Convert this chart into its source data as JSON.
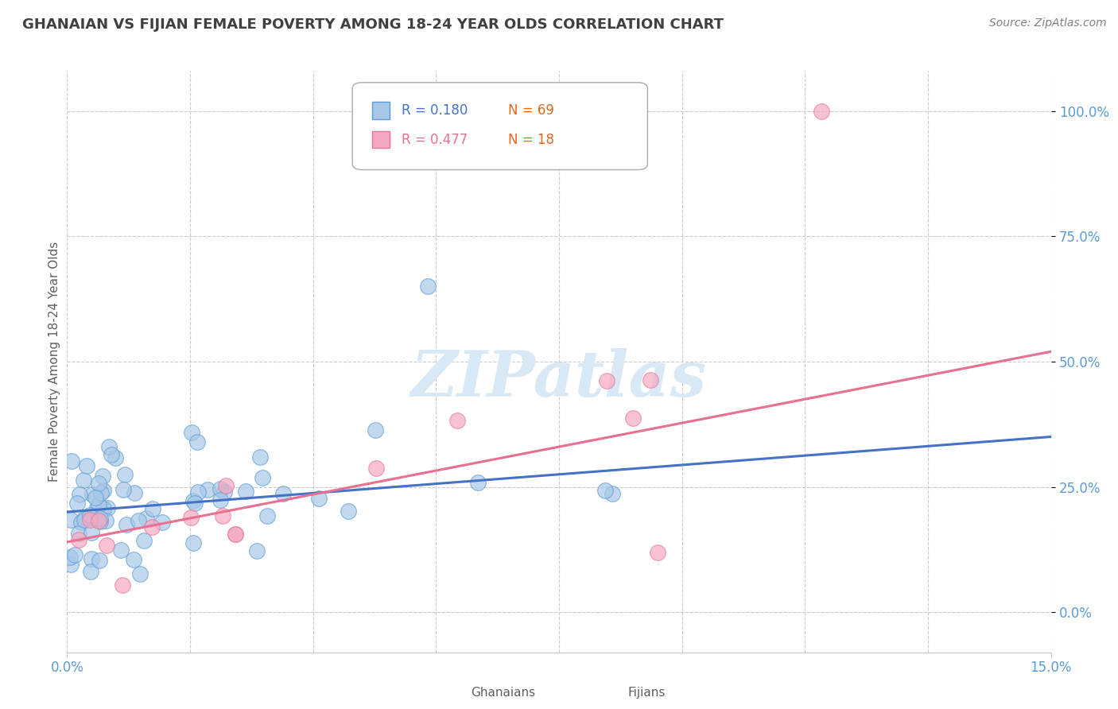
{
  "title": "GHANAIAN VS FIJIAN FEMALE POVERTY AMONG 18-24 YEAR OLDS CORRELATION CHART",
  "source": "Source: ZipAtlas.com",
  "ylabel": "Female Poverty Among 18-24 Year Olds",
  "xlim": [
    0.0,
    15.0
  ],
  "ylim": [
    -8.0,
    108.0
  ],
  "yticks": [
    0,
    25,
    50,
    75,
    100
  ],
  "ytick_labels": [
    "0.0%",
    "25.0%",
    "50.0%",
    "75.0%",
    "100.0%"
  ],
  "legend_r1": "R = 0.180",
  "legend_n1": "N = 69",
  "legend_r2": "R = 0.477",
  "legend_n2": "N = 18",
  "color_ghanaian_fill": "#A8C8E8",
  "color_ghanaian_edge": "#5B9BD5",
  "color_fijian_fill": "#F4A8C0",
  "color_fijian_edge": "#E8769A",
  "color_line_ghanaian": "#4472C4",
  "color_line_fijian": "#E87090",
  "watermark_color": "#D8E8F5",
  "title_color": "#404040",
  "axis_label_color": "#5B9BD5",
  "tick_color": "#5B9BD5",
  "grid_color": "#CCCCCC",
  "ylabel_color": "#606060",
  "source_color": "#808080",
  "legend_r_color_1": "#4472C4",
  "legend_n_color_1": "#E06820",
  "legend_r_color_2": "#E87090",
  "legend_n_color_2": "#E06820",
  "bottom_legend_color": "#606060"
}
